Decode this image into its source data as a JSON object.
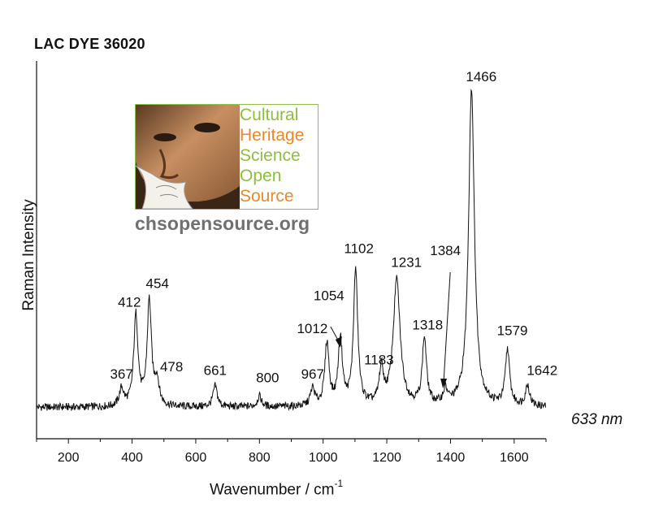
{
  "title": "LAC DYE 36020",
  "logo": {
    "words": [
      "Cultural",
      "Heritage",
      "Science",
      "Open",
      "Source"
    ],
    "word_colors": [
      "#8cbf3c",
      "#e6892a",
      "#8cbf3c",
      "#8cbf3c",
      "#e6892a"
    ],
    "url": "chsopensource.org"
  },
  "laser_label": "633 nm",
  "chart_data": {
    "type": "line",
    "title": "LAC DYE 36020",
    "xlabel": "Wavenumber / cm",
    "xlabel_sup": "-1",
    "ylabel": "Raman Intensity",
    "xlim": [
      100,
      1700
    ],
    "ylim": [
      0,
      1.07
    ],
    "xticks": [
      200,
      400,
      600,
      800,
      1000,
      1200,
      1400,
      1600
    ],
    "grid": false,
    "baseline": 0.09,
    "peaks": [
      {
        "x": 367,
        "y": 0.14,
        "label": "367"
      },
      {
        "x": 412,
        "y": 0.35,
        "label": "412"
      },
      {
        "x": 454,
        "y": 0.39,
        "label": "454"
      },
      {
        "x": 478,
        "y": 0.16,
        "label": "478"
      },
      {
        "x": 661,
        "y": 0.15,
        "label": "661"
      },
      {
        "x": 800,
        "y": 0.12,
        "label": "800"
      },
      {
        "x": 967,
        "y": 0.14,
        "label": "967"
      },
      {
        "x": 1012,
        "y": 0.27,
        "label": "1012"
      },
      {
        "x": 1054,
        "y": 0.28,
        "label": "1054"
      },
      {
        "x": 1102,
        "y": 0.48,
        "label": "1102"
      },
      {
        "x": 1183,
        "y": 0.19,
        "label": "1183"
      },
      {
        "x": 1231,
        "y": 0.45,
        "label": "1231"
      },
      {
        "x": 1318,
        "y": 0.28,
        "label": "1318"
      },
      {
        "x": 1384,
        "y": 0.13,
        "label": "1384"
      },
      {
        "x": 1466,
        "y": 1.0,
        "label": "1466"
      },
      {
        "x": 1579,
        "y": 0.25,
        "label": "1579"
      },
      {
        "x": 1642,
        "y": 0.15,
        "label": "1642"
      }
    ]
  }
}
